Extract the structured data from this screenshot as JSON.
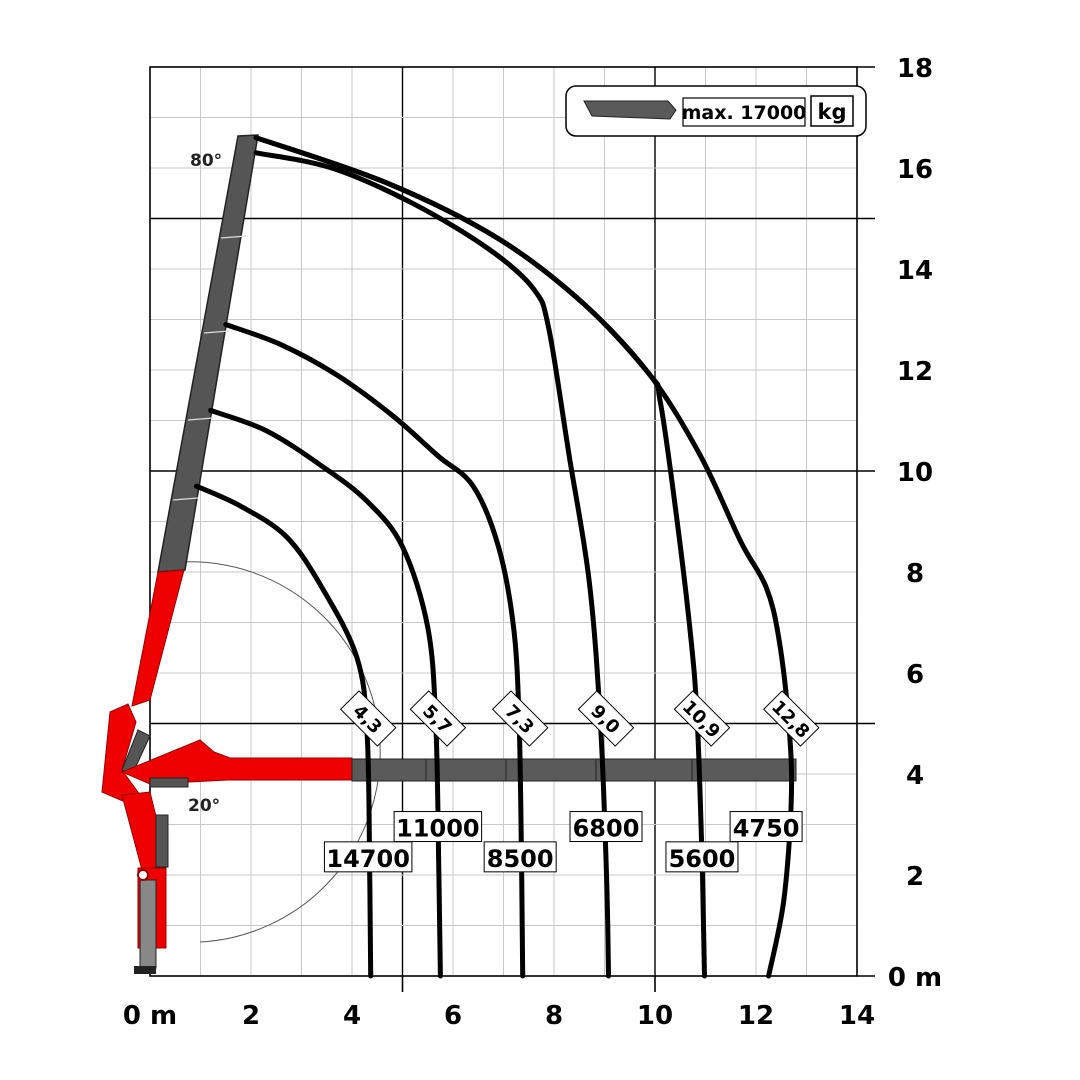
{
  "chart_data": {
    "type": "line",
    "title": "",
    "xlabel": "",
    "ylabel": "",
    "xlim": [
      0,
      14
    ],
    "ylim": [
      0,
      18
    ],
    "x_ticks": [
      "0 m",
      "2",
      "4",
      "6",
      "8",
      "10",
      "12",
      "14"
    ],
    "y_ticks": [
      "0 m",
      "2",
      "4",
      "6",
      "8",
      "10",
      "12",
      "14",
      "16",
      "18"
    ],
    "grid": true,
    "legend": {
      "text": "max. 17000",
      "unit": "kg",
      "placement": "top-right"
    },
    "boom_angles": [
      "80°",
      "20°"
    ],
    "series": [
      {
        "reach_label": "4,3",
        "load_label": "14700",
        "x": [
          0.92,
          1.8,
          2.7,
          3.4,
          4.1,
          4.3,
          4.35,
          4.37
        ],
        "y": [
          9.7,
          9.3,
          8.7,
          7.7,
          6.3,
          4.8,
          2.0,
          0.0
        ]
      },
      {
        "reach_label": "5,7",
        "load_label": "11000",
        "x": [
          1.2,
          2.3,
          3.4,
          4.3,
          5.0,
          5.5,
          5.66,
          5.72,
          5.75
        ],
        "y": [
          11.2,
          10.8,
          10.1,
          9.4,
          8.5,
          6.9,
          5.0,
          2.0,
          0.0
        ]
      },
      {
        "reach_label": "7,3",
        "load_label": "8500",
        "x": [
          1.5,
          2.6,
          3.7,
          4.8,
          5.7,
          6.4,
          6.9,
          7.2,
          7.31,
          7.36,
          7.38
        ],
        "y": [
          12.9,
          12.5,
          11.9,
          11.1,
          10.3,
          9.7,
          8.5,
          6.9,
          5.0,
          2.0,
          0.0
        ]
      },
      {
        "reach_label": "9,0",
        "load_label": "6800",
        "x": [
          2.1,
          3.6,
          5.2,
          6.7,
          7.6,
          7.9,
          8.3,
          8.7,
          8.92,
          9.04,
          9.08
        ],
        "y": [
          16.3,
          16.0,
          15.3,
          14.4,
          13.6,
          12.8,
          10.3,
          7.8,
          5.0,
          2.0,
          0.0
        ]
      },
      {
        "reach_label": "10,9",
        "load_label": "5600",
        "x": [
          2.1,
          4.7,
          6.9,
          8.6,
          9.9,
          10.1,
          10.4,
          10.7,
          10.84,
          10.94,
          10.98
        ],
        "y": [
          16.6,
          15.7,
          14.6,
          13.3,
          11.9,
          11.4,
          9.3,
          6.8,
          5.0,
          2.0,
          0.0
        ]
      },
      {
        "reach_label": "12,8",
        "load_label": "4750",
        "x": [
          2.1,
          4.7,
          6.9,
          8.6,
          9.9,
          10.9,
          11.7,
          12.2,
          12.45,
          12.65,
          12.7,
          12.55,
          12.25
        ],
        "y": [
          16.6,
          15.7,
          14.6,
          13.3,
          11.9,
          10.3,
          8.6,
          7.7,
          6.7,
          5.0,
          3.5,
          1.5,
          0.0
        ]
      }
    ]
  }
}
